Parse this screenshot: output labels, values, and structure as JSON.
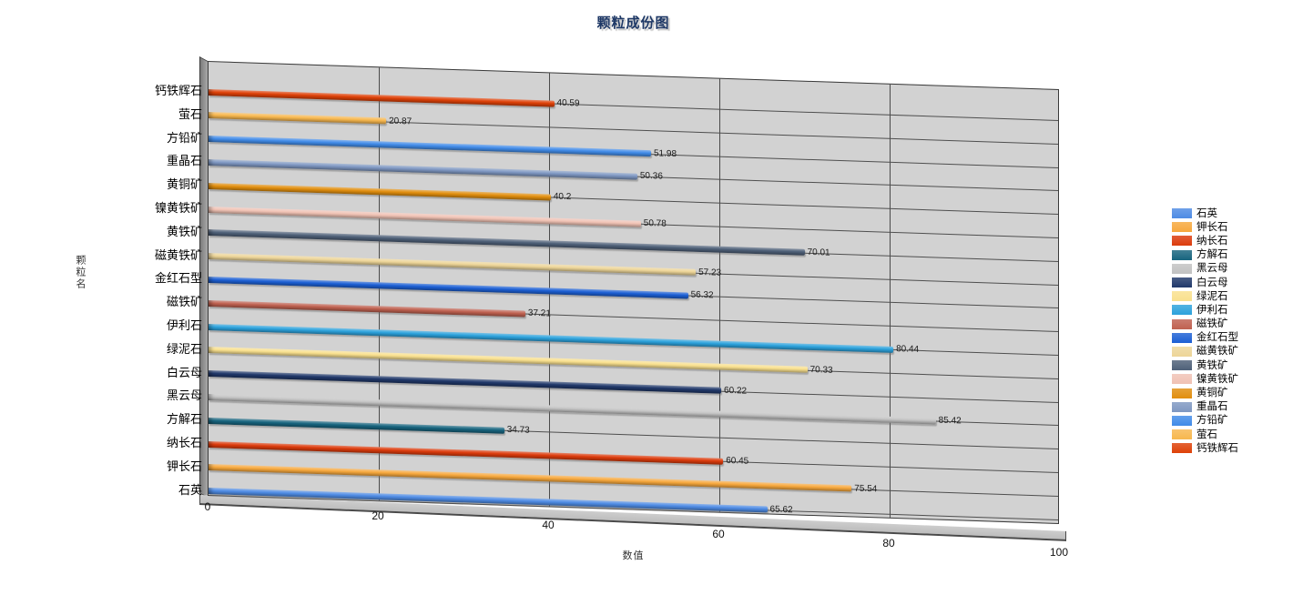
{
  "chart_data": {
    "type": "bar",
    "orientation": "horizontal",
    "effect": "3d",
    "title": "颗粒成份图",
    "xlabel": "数值",
    "ylabel": "颗粒名",
    "xlim": [
      0,
      100
    ],
    "xticks": [
      0,
      20,
      40,
      60,
      80,
      100
    ],
    "grid": true,
    "plot_background": "#d2d2d2",
    "title_color": "#1e3866",
    "rows_top_to_bottom": [
      {
        "label": "钙铁辉石",
        "value": 40.59,
        "color": "#de4108"
      },
      {
        "label": "萤石",
        "value": 20.87,
        "color": "#f7b74e"
      },
      {
        "label": "方铅矿",
        "value": 51.98,
        "color": "#418be8"
      },
      {
        "label": "重晶石",
        "value": 50.36,
        "color": "#7e97c2"
      },
      {
        "label": "黄铜矿",
        "value": 40.2,
        "color": "#e18e0e"
      },
      {
        "label": "镍黄铁矿",
        "value": 50.78,
        "color": "#f0c2b4"
      },
      {
        "label": "黄铁矿",
        "value": 70.01,
        "color": "#4e6078"
      },
      {
        "label": "磁黄铁矿",
        "value": 57.23,
        "color": "#edd598"
      },
      {
        "label": "金红石型",
        "value": 56.32,
        "color": "#1c5fd4"
      },
      {
        "label": "磁铁矿",
        "value": 37.21,
        "color": "#bf6150"
      },
      {
        "label": "伊利石",
        "value": 80.44,
        "color": "#2ca2dc"
      },
      {
        "label": "绿泥石",
        "value": 70.33,
        "color": "#f9e08e"
      },
      {
        "label": "白云母",
        "value": 60.22,
        "color": "#20386a"
      },
      {
        "label": "黑云母",
        "value": 85.42,
        "color": "#c2c2c2"
      },
      {
        "label": "方解石",
        "value": 34.73,
        "color": "#17647e"
      },
      {
        "label": "纳长石",
        "value": 60.45,
        "color": "#dc3b0c"
      },
      {
        "label": "钾长石",
        "value": 75.54,
        "color": "#f7a83d"
      },
      {
        "label": "石英",
        "value": 65.62,
        "color": "#4e8be4"
      }
    ],
    "legend_position": "right",
    "legend_top_to_bottom": [
      {
        "label": "石英",
        "color": "#4e8be4"
      },
      {
        "label": "钾长石",
        "color": "#f7a83d"
      },
      {
        "label": "纳长石",
        "color": "#dc3b0c"
      },
      {
        "label": "方解石",
        "color": "#17647e"
      },
      {
        "label": "黑云母",
        "color": "#c2c2c2"
      },
      {
        "label": "白云母",
        "color": "#20386a"
      },
      {
        "label": "绿泥石",
        "color": "#f9e08e"
      },
      {
        "label": "伊利石",
        "color": "#2ca2dc"
      },
      {
        "label": "磁铁矿",
        "color": "#bf6150"
      },
      {
        "label": "金红石型",
        "color": "#1c5fd4"
      },
      {
        "label": "磁黄铁矿",
        "color": "#edd598"
      },
      {
        "label": "黄铁矿",
        "color": "#4e6078"
      },
      {
        "label": "镍黄铁矿",
        "color": "#f0c2b4"
      },
      {
        "label": "黄铜矿",
        "color": "#e18e0e"
      },
      {
        "label": "重晶石",
        "color": "#7e97c2"
      },
      {
        "label": "方铅矿",
        "color": "#418be8"
      },
      {
        "label": "萤石",
        "color": "#f7b74e"
      },
      {
        "label": "钙铁辉石",
        "color": "#de4108"
      }
    ]
  }
}
